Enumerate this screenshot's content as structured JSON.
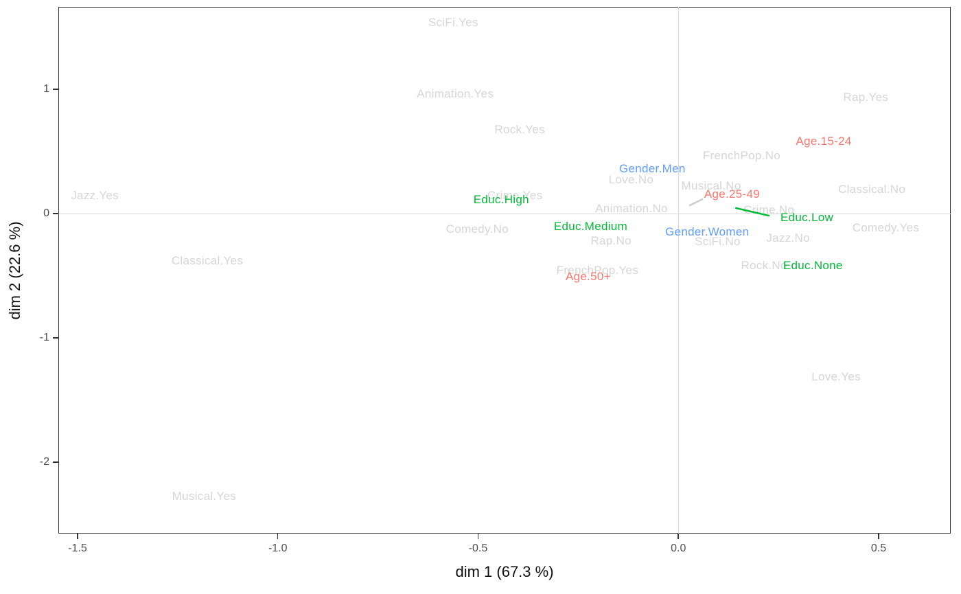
{
  "chart_data": {
    "type": "scatter",
    "description": "MCA factor map of category labels (text-only scatter plot)",
    "xlabel": "dim 1 (67.3 %)",
    "ylabel": "dim 2 (22.6 %)",
    "xlim": [
      -1.548,
      0.68
    ],
    "ylim": [
      -2.575,
      1.663
    ],
    "x_ticks": {
      "labels": [
        "-1.5",
        "-1.0",
        "-0.5",
        "0.0",
        "0.5"
      ],
      "values": [
        -1.5,
        -1.0,
        -0.5,
        0.0,
        0.5
      ]
    },
    "y_ticks": {
      "labels": [
        "1",
        "0",
        "-1",
        "-2"
      ],
      "values": [
        1,
        0,
        -1,
        -2
      ]
    },
    "grid": "none (only zero reference lines at x=0 and y=0)",
    "legend": "none",
    "series": [
      {
        "name": "categories",
        "color_key": "gray",
        "points": [
          {
            "label": "SciFi.Yes",
            "x": -0.562,
            "y": 1.536
          },
          {
            "label": "Animation.Yes",
            "x": -0.557,
            "y": 0.961
          },
          {
            "label": "Rap.Yes",
            "x": 0.468,
            "y": 0.934
          },
          {
            "label": "Rock.Yes",
            "x": -0.396,
            "y": 0.674
          },
          {
            "label": "FrenchPop.No",
            "x": 0.158,
            "y": 0.464
          },
          {
            "label": "Love.No",
            "x": -0.118,
            "y": 0.271
          },
          {
            "label": "Musical.No",
            "x": 0.082,
            "y": 0.221
          },
          {
            "label": "Classical.No",
            "x": 0.483,
            "y": 0.193
          },
          {
            "label": "Jazz.Yes",
            "x": -1.457,
            "y": 0.144
          },
          {
            "label": "Crime.Yes",
            "x": -0.408,
            "y": 0.144
          },
          {
            "label": "Animation.No",
            "x": -0.117,
            "y": 0.039
          },
          {
            "label": "Crime.No",
            "x": 0.226,
            "y": 0.028
          },
          {
            "label": "Comedy.No",
            "x": -0.502,
            "y": -0.127
          },
          {
            "label": "Comedy.Yes",
            "x": 0.518,
            "y": -0.116
          },
          {
            "label": "Rap.No",
            "x": -0.168,
            "y": -0.221
          },
          {
            "label": "SciFi.No",
            "x": 0.098,
            "y": -0.227
          },
          {
            "label": "Jazz.No",
            "x": 0.274,
            "y": -0.199
          },
          {
            "label": "Rock.No",
            "x": 0.214,
            "y": -0.42
          },
          {
            "label": "Classical.Yes",
            "x": -1.176,
            "y": -0.381
          },
          {
            "label": "FrenchPop.Yes",
            "x": -0.202,
            "y": -0.459
          },
          {
            "label": "Love.Yes",
            "x": 0.394,
            "y": -1.315
          },
          {
            "label": "Musical.Yes",
            "x": -1.184,
            "y": -2.276
          }
        ]
      },
      {
        "name": "Age",
        "color_key": "red",
        "points": [
          {
            "label": "Age.15-24",
            "x": 0.363,
            "y": 0.58
          },
          {
            "label": "Age.25-49",
            "x": 0.134,
            "y": 0.155
          },
          {
            "label": "Age.50+",
            "x": -0.225,
            "y": -0.508
          }
        ]
      },
      {
        "name": "Gender",
        "color_key": "blue",
        "points": [
          {
            "label": "Gender.Men",
            "x": -0.065,
            "y": 0.359
          },
          {
            "label": "Gender.Women",
            "x": 0.072,
            "y": -0.149
          }
        ]
      },
      {
        "name": "Educ",
        "color_key": "green",
        "points": [
          {
            "label": "Educ.High",
            "x": -0.442,
            "y": 0.11
          },
          {
            "label": "Educ.Medium",
            "x": -0.219,
            "y": -0.105
          },
          {
            "label": "Educ.Low",
            "x": 0.321,
            "y": -0.033
          },
          {
            "label": "Educ.None",
            "x": 0.336,
            "y": -0.42
          }
        ]
      }
    ],
    "segments": [
      {
        "name": "educ-low-leader-segment",
        "color_key": "green",
        "x1": 0.144,
        "y1": 0.044,
        "x2": 0.226,
        "y2": -0.017,
        "width": 2.5
      },
      {
        "name": "age-25-49-leader-segment",
        "color_key": "segment_gray",
        "x1": 0.029,
        "y1": 0.066,
        "x2": 0.06,
        "y2": 0.116,
        "width": 2.5
      }
    ]
  },
  "colors": {
    "gray": "#d6d6d6",
    "red": "#f8766d",
    "green": "#00ba38",
    "blue": "#619cff",
    "segment_gray": "#cccccc",
    "axis_text": "#4d4d4d",
    "title_text": "#111111",
    "panel_border": "#333333",
    "zero_line": "#dadada",
    "tick_mark": "#333333"
  }
}
